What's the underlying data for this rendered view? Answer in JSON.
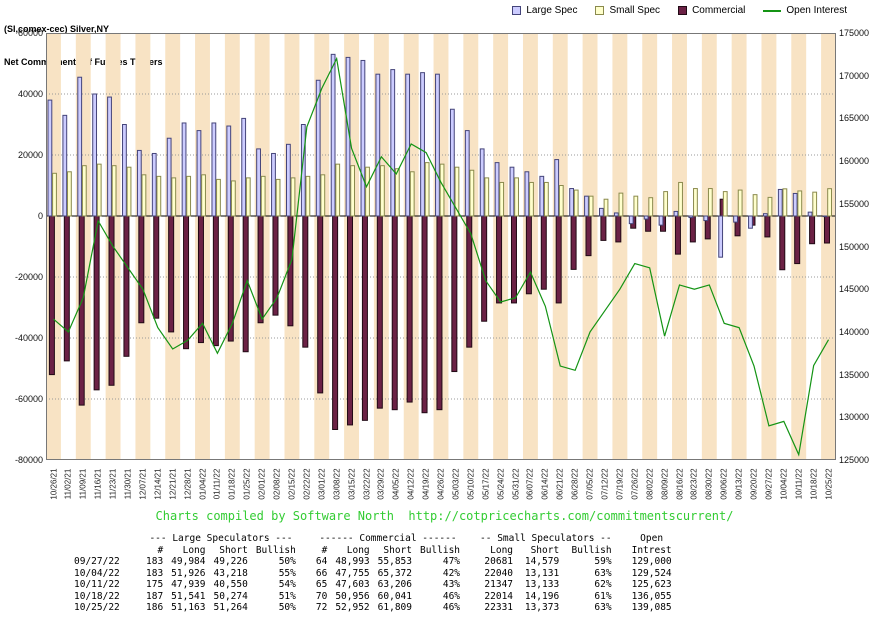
{
  "header": {
    "title_line1": "(SI,comex-cec) Silver,NY",
    "title_line2": "Net Commitments of Futures Traders"
  },
  "legend": [
    {
      "label": "Large Spec",
      "type": "box",
      "color": "#ccccff",
      "border": "#44447a"
    },
    {
      "label": "Small Spec",
      "type": "box",
      "color": "#ffffcc",
      "border": "#8a8a4d"
    },
    {
      "label": "Commercial",
      "type": "box",
      "color": "#6b2145",
      "border": "#210a15"
    },
    {
      "label": "Open Interest",
      "type": "line",
      "color": "#149414"
    }
  ],
  "axes": {
    "left_ticks": [
      60000,
      40000,
      20000,
      0,
      -20000,
      -40000,
      -60000,
      -80000
    ],
    "right_ticks": [
      175000,
      170000,
      165000,
      160000,
      155000,
      150000,
      145000,
      140000,
      135000,
      130000,
      125000
    ]
  },
  "chart_data": {
    "type": "bar",
    "title": "Net Commitments of Futures Traders (SI,comex-cec) Silver,NY",
    "left_axis": {
      "min": -80000,
      "max": 60000,
      "tick": 20000
    },
    "right_axis": {
      "min": 125000,
      "max": 175000,
      "tick": 5000
    },
    "stripe_colors": [
      "#f8e3c4",
      "#ffffff"
    ],
    "grid": true,
    "legend_position": "top-right",
    "categories": [
      "10/26/21",
      "11/02/21",
      "11/09/21",
      "11/16/21",
      "11/23/21",
      "11/30/21",
      "12/07/21",
      "12/14/21",
      "12/21/21",
      "12/28/21",
      "01/04/22",
      "01/11/22",
      "01/18/22",
      "01/25/22",
      "02/01/22",
      "02/08/22",
      "02/15/22",
      "02/22/22",
      "03/01/22",
      "03/08/22",
      "03/15/22",
      "03/22/22",
      "03/29/22",
      "04/05/22",
      "04/12/22",
      "04/19/22",
      "04/26/22",
      "05/03/22",
      "05/10/22",
      "05/17/22",
      "05/24/22",
      "05/31/22",
      "06/07/22",
      "06/14/22",
      "06/21/22",
      "06/28/22",
      "07/05/22",
      "07/12/22",
      "07/19/22",
      "07/26/22",
      "08/02/22",
      "08/09/22",
      "08/16/22",
      "08/23/22",
      "08/30/22",
      "09/06/22",
      "09/13/22",
      "09/20/22",
      "09/27/22",
      "10/04/22",
      "10/11/22",
      "10/18/22",
      "10/25/22"
    ],
    "series": [
      {
        "name": "Large Spec",
        "type": "bar",
        "axis": "left",
        "color": "#ccccff",
        "border": "#44447a",
        "values": [
          38000,
          33000,
          45500,
          40000,
          39000,
          30000,
          21500,
          20500,
          25500,
          30500,
          28000,
          30500,
          29500,
          32000,
          22000,
          20500,
          23500,
          30000,
          44500,
          53000,
          52000,
          51000,
          46500,
          48000,
          46500,
          47000,
          46500,
          35000,
          28000,
          22000,
          17500,
          16000,
          14500,
          13000,
          18500,
          9000,
          6500,
          2500,
          1000,
          -2500,
          -1000,
          -3000,
          1500,
          -500,
          -1500,
          -13500,
          -2000,
          -4000,
          758,
          8708,
          7389,
          1267,
          -101
        ]
      },
      {
        "name": "Small Spec",
        "type": "bar",
        "axis": "left",
        "color": "#ffffcc",
        "border": "#8a8a4d",
        "values": [
          14000,
          14500,
          16500,
          17000,
          16500,
          16000,
          13500,
          13000,
          12500,
          13000,
          13500,
          12000,
          11500,
          12500,
          13000,
          12000,
          12500,
          13000,
          13500,
          17000,
          16500,
          16000,
          16500,
          15500,
          14500,
          17500,
          17000,
          16000,
          15000,
          12500,
          11000,
          12500,
          11000,
          11000,
          10000,
          8500,
          6500,
          5500,
          7500,
          6500,
          6000,
          8000,
          11000,
          9000,
          9000,
          8000,
          8500,
          7000,
          6102,
          8909,
          8214,
          7818,
          8958
        ]
      },
      {
        "name": "Commercial",
        "type": "bar",
        "axis": "left",
        "color": "#6b2145",
        "border": "#210a15",
        "values": [
          -52000,
          -47500,
          -62000,
          -57000,
          -55500,
          -46000,
          -35000,
          -33500,
          -38000,
          -43500,
          -41500,
          -42500,
          -41000,
          -44500,
          -35000,
          -32500,
          -36000,
          -43000,
          -58000,
          -70000,
          -68500,
          -67000,
          -63000,
          -63500,
          -61000,
          -64500,
          -63500,
          -51000,
          -43000,
          -34500,
          -28500,
          -28500,
          -25500,
          -24000,
          -28500,
          -17500,
          -13000,
          -8000,
          -8500,
          -4000,
          -5000,
          -5000,
          -12500,
          -8500,
          -7500,
          5500,
          -6500,
          -3000,
          -6860,
          -17617,
          -15603,
          -9085,
          -8857
        ]
      },
      {
        "name": "Open Interest",
        "type": "line",
        "axis": "right",
        "color": "#149414",
        "values": [
          141500,
          140000,
          144000,
          153000,
          150000,
          147500,
          145000,
          140500,
          138000,
          139000,
          141000,
          137500,
          141000,
          146000,
          141500,
          144000,
          148500,
          164000,
          168500,
          172000,
          161500,
          157000,
          160500,
          158500,
          162000,
          161000,
          157500,
          154500,
          151500,
          146000,
          143500,
          144000,
          147000,
          143000,
          136000,
          135500,
          140000,
          142500,
          145000,
          148000,
          147500,
          139500,
          145500,
          145000,
          145500,
          141000,
          140500,
          136000,
          129000,
          129524,
          125623,
          136055,
          139085
        ]
      }
    ]
  },
  "footer": {
    "credit": "Charts compiled by Software North  http://cotpricecharts.com/commitmentscurrent/",
    "credit_color": "#33cc33"
  },
  "table": {
    "group_headers": [
      {
        "label": "",
        "span": 1
      },
      {
        "label": "--- Large Speculators ---",
        "span": 4
      },
      {
        "label": "------ Commercial ------",
        "span": 4
      },
      {
        "label": "-- Small Speculators --",
        "span": 3
      },
      {
        "label": "Open",
        "span": 1
      }
    ],
    "col_headers": [
      "",
      "#",
      "Long",
      "Short",
      "Bullish",
      "#",
      "Long",
      "Short",
      "Bullish",
      "Long",
      "Short",
      "Bullish",
      "Intrest"
    ],
    "rows": [
      [
        "09/27/22",
        "183",
        "49,984",
        "49,226",
        "50%",
        "64",
        "48,993",
        "55,853",
        "47%",
        "20681",
        "14,579",
        "59%",
        "129,000"
      ],
      [
        "10/04/22",
        "183",
        "51,926",
        "43,218",
        "55%",
        "66",
        "47,755",
        "65,372",
        "42%",
        "22040",
        "13,131",
        "63%",
        "129,524"
      ],
      [
        "10/11/22",
        "175",
        "47,939",
        "40,550",
        "54%",
        "65",
        "47,603",
        "63,206",
        "43%",
        "21347",
        "13,133",
        "62%",
        "125,623"
      ],
      [
        "10/18/22",
        "187",
        "51,541",
        "50,274",
        "51%",
        "70",
        "50,956",
        "60,041",
        "46%",
        "22014",
        "14,196",
        "61%",
        "136,055"
      ],
      [
        "10/25/22",
        "186",
        "51,163",
        "51,264",
        "50%",
        "72",
        "52,952",
        "61,809",
        "46%",
        "22331",
        "13,373",
        "63%",
        "139,085"
      ]
    ]
  }
}
